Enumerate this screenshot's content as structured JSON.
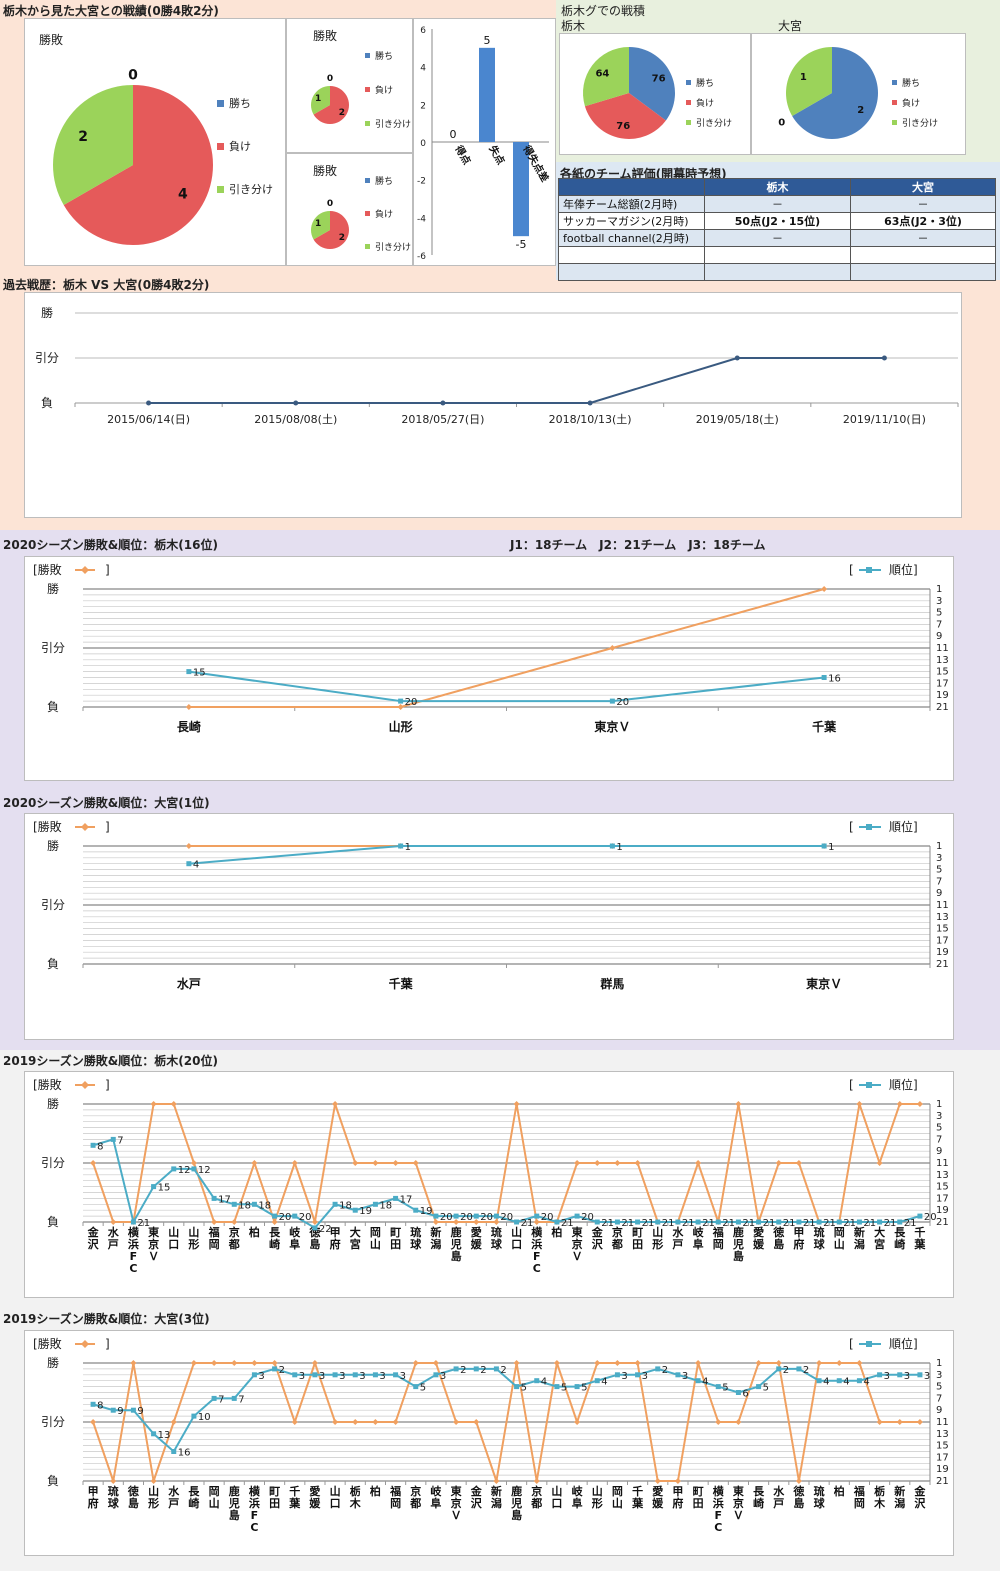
{
  "top": {
    "title": "栃木から見た大宮との戦績(0勝4敗2分)",
    "pie_title": "勝敗",
    "small_pie_title": "勝敗",
    "legend": [
      "勝ち",
      "負け",
      "引き分け"
    ],
    "league_title": "栃木グでの戦積",
    "team_a": "栃木",
    "team_b": "大宮"
  },
  "eval": {
    "title": "各紙のチーム評価(開幕時予想)",
    "headers": [
      "",
      "栃木",
      "大宮"
    ],
    "rows": [
      [
        "年俸チーム総額(2月時)",
        "－",
        "－"
      ],
      [
        "サッカーマガジン(2月時)",
        "50点(J2・15位)",
        "63点(J2・3位)"
      ],
      [
        "football channel(2月時)",
        "－",
        "－"
      ],
      [
        "",
        "",
        ""
      ],
      [
        "",
        "",
        ""
      ]
    ]
  },
  "history": {
    "title": "過去戦歴：栃木 VS 大宮(0勝4敗2分)",
    "ylabels": [
      "勝",
      "引分",
      "負"
    ]
  },
  "j_counts": "J1：18チーム　J2：21チーム　J3：18チーム",
  "season_common": {
    "left_legend": "[勝敗",
    "left_close": "]",
    "right_legend": "順位]",
    "right_open": "[",
    "ylabels": [
      "勝",
      "引分",
      "負"
    ],
    "rank_ticks": [
      "1",
      "3",
      "5",
      "7",
      "9",
      "11",
      "13",
      "15",
      "17",
      "19",
      "21"
    ]
  },
  "seasons": [
    {
      "title": "2020シーズン勝敗&順位：栃木(16位)"
    },
    {
      "title": "2020シーズン勝敗&順位：大宮(1位)"
    },
    {
      "title": "2019シーズン勝敗&順位：栃木(20位)"
    },
    {
      "title": "2019シーズン勝敗&順位：大宮(3位)"
    }
  ],
  "chart_data": [
    {
      "type": "pie",
      "title": "勝敗",
      "labels": [
        "勝ち",
        "負け",
        "引き分け"
      ],
      "values": [
        0,
        4,
        2
      ],
      "colors": [
        "#4f81bd",
        "#e55a5a",
        "#9bd35a"
      ]
    },
    {
      "type": "pie",
      "title": "勝敗",
      "labels": [
        "勝ち",
        "負け",
        "引き分け"
      ],
      "values": [
        0,
        2,
        1
      ],
      "colors": [
        "#4f81bd",
        "#e55a5a",
        "#9bd35a"
      ]
    },
    {
      "type": "pie",
      "title": "勝敗",
      "labels": [
        "勝ち",
        "負け",
        "引き分け"
      ],
      "values": [
        0,
        2,
        1
      ],
      "colors": [
        "#4f81bd",
        "#e55a5a",
        "#9bd35a"
      ]
    },
    {
      "type": "bar",
      "categories": [
        "得点",
        "失点",
        "得失点差"
      ],
      "values": [
        0,
        5,
        -5
      ],
      "ylim": [
        -6,
        6
      ],
      "yticks": [
        6,
        4,
        2,
        0,
        -2,
        -4,
        -6
      ],
      "color": "#4a86cf"
    },
    {
      "type": "pie",
      "title": "栃木",
      "labels": [
        "勝ち",
        "負け",
        "引き分け"
      ],
      "values": [
        76,
        76,
        64
      ],
      "colors": [
        "#4f81bd",
        "#e55a5a",
        "#9bd35a"
      ]
    },
    {
      "type": "pie",
      "title": "大宮",
      "labels": [
        "勝ち",
        "負け",
        "引き分け"
      ],
      "values": [
        2,
        0,
        1
      ],
      "colors": [
        "#4f81bd",
        "#e55a5a",
        "#9bd35a"
      ]
    },
    {
      "type": "line",
      "title": "過去戦歴：栃木 VS 大宮(0勝4敗2分)",
      "x": [
        "2015/06/14(日)",
        "2015/08/08(土)",
        "2018/05/27(日)",
        "2018/10/13(土)",
        "2019/05/18(土)",
        "2019/11/10(日)"
      ],
      "values": [
        0,
        0,
        0,
        0,
        1,
        1
      ],
      "ylim": [
        0,
        2
      ],
      "ylabels": [
        "負",
        "引分",
        "勝"
      ],
      "color": "#3a5a80"
    },
    {
      "type": "line",
      "title": "2020シーズン勝敗&順位：栃木(16位)",
      "categories": [
        "長崎",
        "山形",
        "東京Ｖ",
        "千葉"
      ],
      "series": [
        {
          "name": "勝敗",
          "values": [
            0,
            0,
            1,
            2
          ],
          "color": "#f0a060"
        },
        {
          "name": "順位",
          "values": [
            15,
            20,
            20,
            16
          ],
          "color": "#4bacc6"
        }
      ]
    },
    {
      "type": "line",
      "title": "2020シーズン勝敗&順位：大宮(1位)",
      "categories": [
        "水戸",
        "千葉",
        "群馬",
        "東京Ｖ"
      ],
      "series": [
        {
          "name": "勝敗",
          "values": [
            2,
            2,
            2,
            2
          ],
          "color": "#f0a060"
        },
        {
          "name": "順位",
          "values": [
            4,
            1,
            1,
            1
          ],
          "color": "#4bacc6"
        }
      ]
    },
    {
      "type": "line",
      "title": "2019シーズン勝敗&順位：栃木(20位)",
      "categories": [
        "金沢",
        "水戸",
        "横浜FC",
        "東京Ｖ",
        "山口",
        "山形",
        "福岡",
        "京都",
        "柏",
        "長崎",
        "岐阜",
        "徳島",
        "甲府",
        "大宮",
        "岡山",
        "町田",
        "琉球",
        "新潟",
        "鹿児島",
        "愛媛",
        "琉球",
        "山口",
        "横浜FC",
        "柏",
        "東京Ｖ",
        "金沢",
        "京都",
        "町田",
        "山形",
        "水戸",
        "岐阜",
        "福岡",
        "鹿児島",
        "愛媛",
        "徳島",
        "甲府",
        "琉球",
        "岡山",
        "新潟",
        "大宮",
        "長崎",
        "千葉"
      ],
      "series": [
        {
          "name": "勝敗",
          "values": [
            1,
            0,
            0,
            2,
            2,
            1,
            0,
            0,
            1,
            0,
            1,
            0,
            2,
            1,
            1,
            1,
            1,
            0,
            0,
            0,
            0,
            2,
            0,
            0,
            1,
            1,
            1,
            1,
            0,
            0,
            1,
            0,
            2,
            0,
            1,
            1,
            0,
            0,
            2,
            1,
            2,
            2
          ],
          "color": "#f0a060"
        },
        {
          "name": "順位",
          "values": [
            8,
            7,
            21,
            15,
            12,
            12,
            17,
            18,
            18,
            20,
            20,
            22,
            18,
            19,
            18,
            17,
            19,
            20,
            20,
            20,
            20,
            21,
            20,
            21,
            20,
            21,
            21,
            21,
            21,
            21,
            21,
            21,
            21,
            21,
            21,
            21,
            21,
            21,
            21,
            21,
            21,
            20
          ],
          "color": "#4bacc6"
        }
      ]
    },
    {
      "type": "line",
      "title": "2019シーズン勝敗&順位：大宮(3位)",
      "categories": [
        "甲府",
        "琉球",
        "徳島",
        "山形",
        "水戸",
        "長崎",
        "岡山",
        "鹿児島",
        "横浜FC",
        "町田",
        "千葉",
        "愛媛",
        "山口",
        "栃木",
        "柏",
        "福岡",
        "京都",
        "岐阜",
        "東京Ｖ",
        "金沢",
        "新潟",
        "鹿児島",
        "京都",
        "山口",
        "岐阜",
        "山形",
        "岡山",
        "千葉",
        "愛媛",
        "甲府",
        "町田",
        "横浜FC",
        "東京Ｖ",
        "長崎",
        "水戸",
        "徳島",
        "琉球",
        "柏",
        "福岡",
        "栃木",
        "新潟",
        "金沢"
      ],
      "series": [
        {
          "name": "勝敗",
          "values": [
            1,
            0,
            2,
            0,
            1,
            2,
            2,
            2,
            2,
            2,
            1,
            2,
            1,
            1,
            1,
            1,
            2,
            2,
            1,
            1,
            0,
            2,
            0,
            2,
            1,
            2,
            2,
            2,
            0,
            0,
            2,
            1,
            1,
            2,
            2,
            0,
            2,
            2,
            2,
            1,
            1,
            1
          ],
          "color": "#f0a060"
        },
        {
          "name": "順位",
          "values": [
            8,
            9,
            9,
            13,
            16,
            10,
            7,
            7,
            3,
            2,
            3,
            3,
            3,
            3,
            3,
            3,
            5,
            3,
            2,
            2,
            2,
            5,
            4,
            5,
            5,
            4,
            3,
            3,
            2,
            3,
            4,
            5,
            6,
            5,
            2,
            2,
            4,
            4,
            4,
            3,
            3,
            3
          ],
          "color": "#4bacc6"
        }
      ]
    }
  ]
}
